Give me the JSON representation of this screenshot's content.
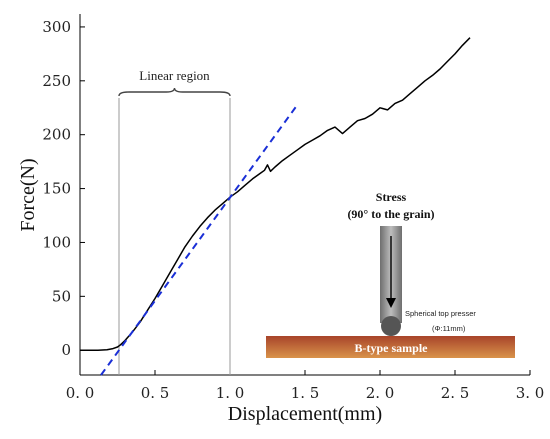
{
  "chart_data": {
    "type": "line",
    "xlabel": "Displacement(mm)",
    "ylabel": "Force(N)",
    "xlim": [
      0,
      3.0
    ],
    "ylim": [
      -23,
      312
    ],
    "x_ticks": [
      0.0,
      0.5,
      1.0,
      1.5,
      2.0,
      2.5,
      3.0
    ],
    "x_tick_labels": [
      "0. 0",
      "0. 5",
      "1. 0",
      "1. 5",
      "2. 0",
      "2. 5",
      "3. 0"
    ],
    "y_ticks": [
      0,
      50,
      100,
      150,
      200,
      250,
      300
    ],
    "y_tick_labels": [
      "0",
      "50",
      "100",
      "150",
      "200",
      "250",
      "300"
    ],
    "grid": false,
    "series": [
      {
        "style": "solid",
        "color": "#000000",
        "x": [
          0.0,
          0.12,
          0.18,
          0.22,
          0.25,
          0.27,
          0.3,
          0.35,
          0.4,
          0.45,
          0.5,
          0.55,
          0.6,
          0.65,
          0.7,
          0.75,
          0.8,
          0.85,
          0.9,
          0.95,
          1.0,
          1.05,
          1.1,
          1.15,
          1.2,
          1.23,
          1.25,
          1.27,
          1.3,
          1.35,
          1.4,
          1.45,
          1.5,
          1.55,
          1.6,
          1.65,
          1.7,
          1.75,
          1.8,
          1.85,
          1.9,
          1.95,
          2.0,
          2.05,
          2.1,
          2.15,
          2.2,
          2.25,
          2.3,
          2.35,
          2.4,
          2.45,
          2.5,
          2.55,
          2.6
        ],
        "y": [
          0,
          0,
          0.5,
          1.5,
          3,
          5,
          9,
          17,
          26,
          37,
          48,
          60,
          72,
          84,
          96,
          106,
          115,
          123,
          130,
          136,
          142,
          147,
          153,
          159,
          164,
          167,
          172,
          166,
          170,
          176,
          181,
          186,
          191,
          195,
          199,
          204,
          207,
          201,
          207,
          213,
          215,
          219,
          225,
          223,
          229,
          232,
          238,
          244,
          250,
          255,
          261,
          268,
          275,
          283,
          290
        ]
      },
      {
        "style": "dashed",
        "color": "#1a2fd6",
        "x": [
          0.14,
          1.44
        ],
        "y": [
          -23,
          226
        ]
      }
    ],
    "annotations": {
      "region_label": "Linear region",
      "region_x": [
        0.26,
        1.0
      ]
    }
  },
  "inset": {
    "stress_line1": "Stress",
    "stress_line2": "(90° to the grain)",
    "presser_line1": "Spherical top presser",
    "presser_line2": "(Φ:11mm)",
    "sample_label": "B-type sample",
    "presser_color": "#8a8a8a",
    "sample_color_top": "#a8442a",
    "sample_color_bottom": "#d9934a"
  }
}
